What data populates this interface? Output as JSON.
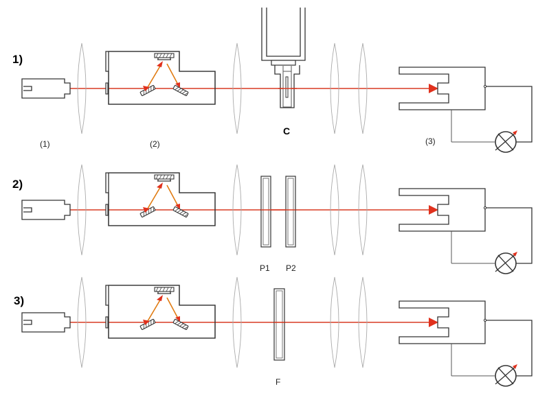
{
  "rows": [
    {
      "label": "1)",
      "component_labels": [
        "(1)",
        "(2)",
        "(3)"
      ],
      "sample_label": "C",
      "sample_type": "cuvette"
    },
    {
      "label": "2)",
      "plate_labels": [
        "P1",
        "P2"
      ],
      "sample_type": "two-plates"
    },
    {
      "label": "3)",
      "filter_label": "F",
      "sample_type": "filter"
    }
  ],
  "colors": {
    "beam": "#d93a22",
    "beam_inner": "#e07a10",
    "outline": "#333333",
    "lens": "#aaaaaa"
  },
  "icons": [
    "laser-source-icon",
    "monochromator-icon",
    "detector-icon",
    "meter-icon",
    "lens-icon"
  ]
}
